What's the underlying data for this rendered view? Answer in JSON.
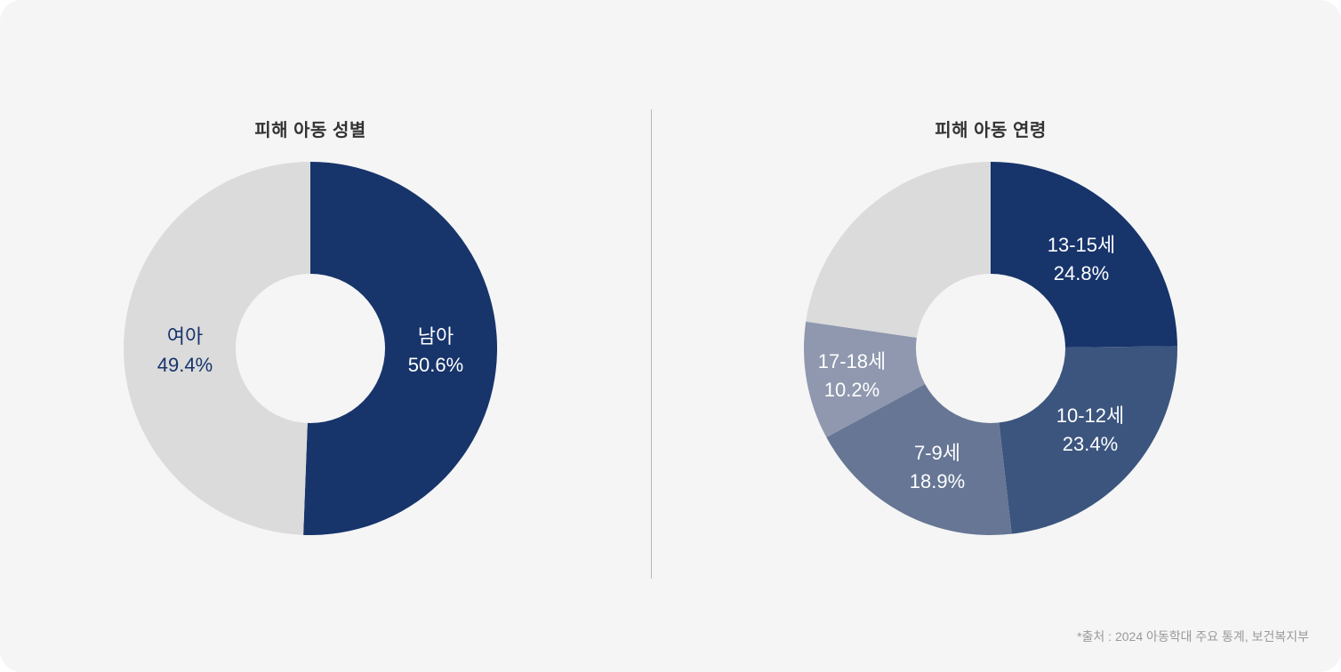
{
  "chart_data": [
    {
      "type": "pie",
      "title": "피해 아동 성별",
      "slices": [
        {
          "name": "남아",
          "value": 50.6,
          "value_label": "50.6%",
          "color": "#17346b",
          "text_color": "#ffffff"
        },
        {
          "name": "여아",
          "value": 49.4,
          "value_label": "49.4%",
          "color": "#dbdbdb",
          "text_color": "#17346b"
        }
      ]
    },
    {
      "type": "pie",
      "title": "피해 아동 연령",
      "slices": [
        {
          "name": "13-15세",
          "value": 24.8,
          "value_label": "24.8%",
          "color": "#17346b",
          "text_color": "#ffffff"
        },
        {
          "name": "10-12세",
          "value": 23.4,
          "value_label": "23.4%",
          "color": "#3b557e",
          "text_color": "#ffffff"
        },
        {
          "name": "7-9세",
          "value": 18.9,
          "value_label": "18.9%",
          "color": "#667694",
          "text_color": "#ffffff"
        },
        {
          "name": "17-18세",
          "value": 10.2,
          "value_label": "10.2%",
          "color": "#8f98ae",
          "text_color": "#ffffff"
        },
        {
          "name": "",
          "value": 22.7,
          "value_label": "",
          "color": "#dbdbdb",
          "text_color": "#ffffff"
        }
      ]
    }
  ],
  "source": "*출처 : 2024 아동학대 주요 통계, 보건복지부",
  "colors": {
    "background": "#f5f5f5",
    "divider": "#b8b8b8"
  }
}
